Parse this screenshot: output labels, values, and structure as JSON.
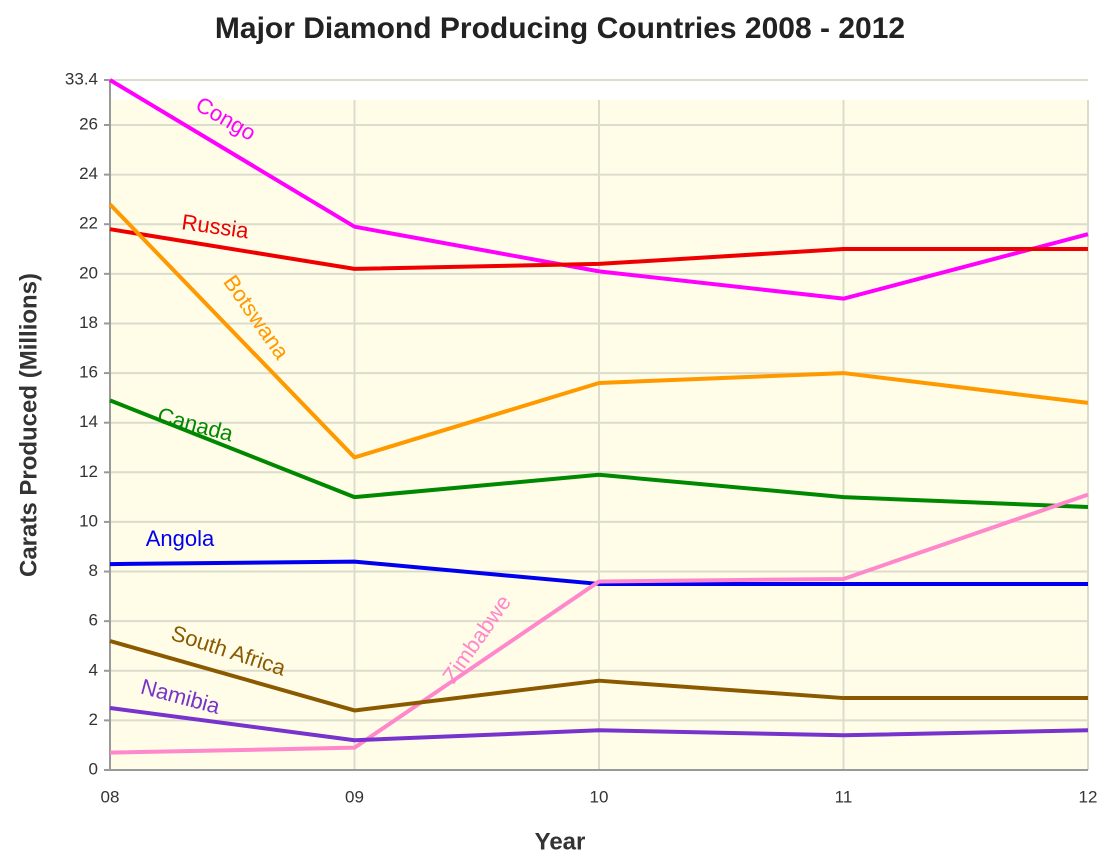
{
  "chart_data": {
    "type": "line",
    "title": "Major Diamond Producing Countries 2008 - 2012",
    "xlabel": "Year",
    "ylabel": "Carats Produced (Millions)",
    "categories": [
      "08",
      "09",
      "10",
      "11",
      "12"
    ],
    "ylim": [
      0,
      33.4
    ],
    "yticks": [
      0,
      2,
      4,
      6,
      8,
      10,
      12,
      14,
      16,
      18,
      20,
      22,
      24,
      26,
      33.4
    ],
    "axis_break": true,
    "grid": true,
    "series": [
      {
        "name": "Congo",
        "color": "#ff00ff",
        "values": [
          33.4,
          21.9,
          20.1,
          19.0,
          21.6
        ]
      },
      {
        "name": "Russia",
        "color": "#ee0000",
        "values": [
          21.8,
          20.2,
          20.4,
          21.0,
          21.0
        ]
      },
      {
        "name": "Botswana",
        "color": "#ff9900",
        "values": [
          22.8,
          12.6,
          15.6,
          16.0,
          14.8
        ]
      },
      {
        "name": "Canada",
        "color": "#008800",
        "values": [
          14.9,
          11.0,
          11.9,
          11.0,
          10.6
        ]
      },
      {
        "name": "Angola",
        "color": "#0000ee",
        "values": [
          8.3,
          8.4,
          7.5,
          7.5,
          7.5
        ]
      },
      {
        "name": "Zimbabwe",
        "color": "#ff88cc",
        "values": [
          0.7,
          0.9,
          7.6,
          7.7,
          11.1
        ]
      },
      {
        "name": "South Africa",
        "color": "#8b5a00",
        "values": [
          5.2,
          2.4,
          3.6,
          2.9,
          2.9
        ]
      },
      {
        "name": "Namibia",
        "color": "#7733cc",
        "values": [
          2.5,
          1.2,
          1.6,
          1.4,
          1.6
        ]
      }
    ]
  }
}
